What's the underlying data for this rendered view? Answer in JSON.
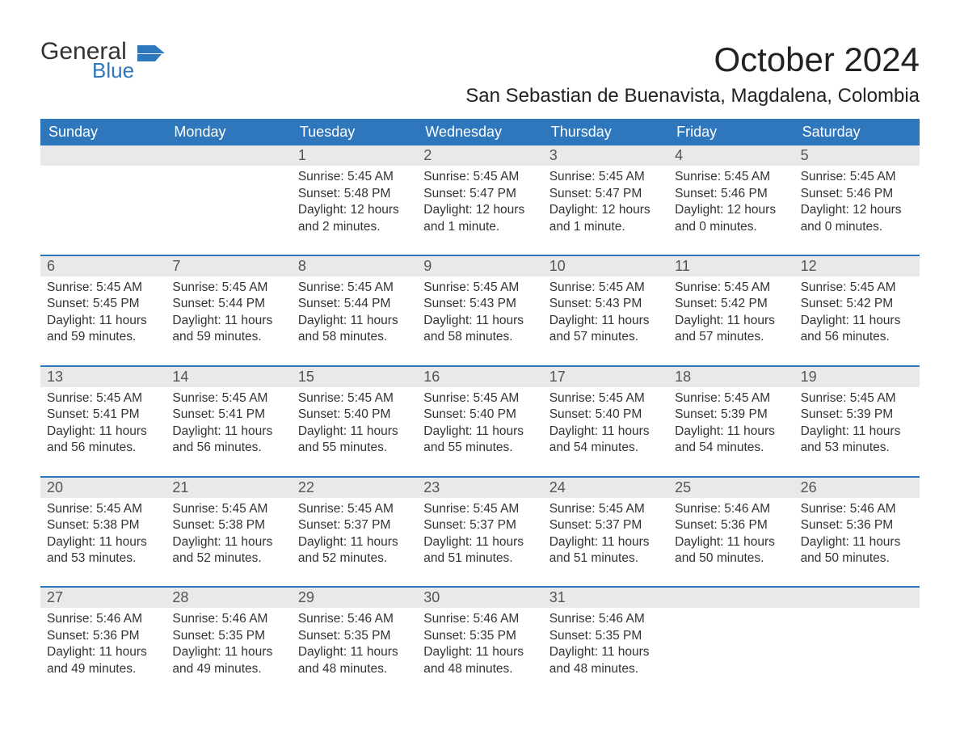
{
  "logo": {
    "general": "General",
    "blue": "Blue",
    "flag_color": "#2f77bc"
  },
  "title": "October 2024",
  "subtitle": "San Sebastian de Buenavista, Magdalena, Colombia",
  "colors": {
    "header_bg": "#2f77bc",
    "header_text": "#ffffff",
    "daynum_bg": "#e9e9e9",
    "text": "#333333",
    "week_border": "#2f77bc"
  },
  "weekdays": [
    "Sunday",
    "Monday",
    "Tuesday",
    "Wednesday",
    "Thursday",
    "Friday",
    "Saturday"
  ],
  "weeks": [
    [
      {
        "n": "",
        "lines": []
      },
      {
        "n": "",
        "lines": []
      },
      {
        "n": "1",
        "lines": [
          "Sunrise: 5:45 AM",
          "Sunset: 5:48 PM",
          "Daylight: 12 hours and 2 minutes."
        ]
      },
      {
        "n": "2",
        "lines": [
          "Sunrise: 5:45 AM",
          "Sunset: 5:47 PM",
          "Daylight: 12 hours and 1 minute."
        ]
      },
      {
        "n": "3",
        "lines": [
          "Sunrise: 5:45 AM",
          "Sunset: 5:47 PM",
          "Daylight: 12 hours and 1 minute."
        ]
      },
      {
        "n": "4",
        "lines": [
          "Sunrise: 5:45 AM",
          "Sunset: 5:46 PM",
          "Daylight: 12 hours and 0 minutes."
        ]
      },
      {
        "n": "5",
        "lines": [
          "Sunrise: 5:45 AM",
          "Sunset: 5:46 PM",
          "Daylight: 12 hours and 0 minutes."
        ]
      }
    ],
    [
      {
        "n": "6",
        "lines": [
          "Sunrise: 5:45 AM",
          "Sunset: 5:45 PM",
          "Daylight: 11 hours and 59 minutes."
        ]
      },
      {
        "n": "7",
        "lines": [
          "Sunrise: 5:45 AM",
          "Sunset: 5:44 PM",
          "Daylight: 11 hours and 59 minutes."
        ]
      },
      {
        "n": "8",
        "lines": [
          "Sunrise: 5:45 AM",
          "Sunset: 5:44 PM",
          "Daylight: 11 hours and 58 minutes."
        ]
      },
      {
        "n": "9",
        "lines": [
          "Sunrise: 5:45 AM",
          "Sunset: 5:43 PM",
          "Daylight: 11 hours and 58 minutes."
        ]
      },
      {
        "n": "10",
        "lines": [
          "Sunrise: 5:45 AM",
          "Sunset: 5:43 PM",
          "Daylight: 11 hours and 57 minutes."
        ]
      },
      {
        "n": "11",
        "lines": [
          "Sunrise: 5:45 AM",
          "Sunset: 5:42 PM",
          "Daylight: 11 hours and 57 minutes."
        ]
      },
      {
        "n": "12",
        "lines": [
          "Sunrise: 5:45 AM",
          "Sunset: 5:42 PM",
          "Daylight: 11 hours and 56 minutes."
        ]
      }
    ],
    [
      {
        "n": "13",
        "lines": [
          "Sunrise: 5:45 AM",
          "Sunset: 5:41 PM",
          "Daylight: 11 hours and 56 minutes."
        ]
      },
      {
        "n": "14",
        "lines": [
          "Sunrise: 5:45 AM",
          "Sunset: 5:41 PM",
          "Daylight: 11 hours and 56 minutes."
        ]
      },
      {
        "n": "15",
        "lines": [
          "Sunrise: 5:45 AM",
          "Sunset: 5:40 PM",
          "Daylight: 11 hours and 55 minutes."
        ]
      },
      {
        "n": "16",
        "lines": [
          "Sunrise: 5:45 AM",
          "Sunset: 5:40 PM",
          "Daylight: 11 hours and 55 minutes."
        ]
      },
      {
        "n": "17",
        "lines": [
          "Sunrise: 5:45 AM",
          "Sunset: 5:40 PM",
          "Daylight: 11 hours and 54 minutes."
        ]
      },
      {
        "n": "18",
        "lines": [
          "Sunrise: 5:45 AM",
          "Sunset: 5:39 PM",
          "Daylight: 11 hours and 54 minutes."
        ]
      },
      {
        "n": "19",
        "lines": [
          "Sunrise: 5:45 AM",
          "Sunset: 5:39 PM",
          "Daylight: 11 hours and 53 minutes."
        ]
      }
    ],
    [
      {
        "n": "20",
        "lines": [
          "Sunrise: 5:45 AM",
          "Sunset: 5:38 PM",
          "Daylight: 11 hours and 53 minutes."
        ]
      },
      {
        "n": "21",
        "lines": [
          "Sunrise: 5:45 AM",
          "Sunset: 5:38 PM",
          "Daylight: 11 hours and 52 minutes."
        ]
      },
      {
        "n": "22",
        "lines": [
          "Sunrise: 5:45 AM",
          "Sunset: 5:37 PM",
          "Daylight: 11 hours and 52 minutes."
        ]
      },
      {
        "n": "23",
        "lines": [
          "Sunrise: 5:45 AM",
          "Sunset: 5:37 PM",
          "Daylight: 11 hours and 51 minutes."
        ]
      },
      {
        "n": "24",
        "lines": [
          "Sunrise: 5:45 AM",
          "Sunset: 5:37 PM",
          "Daylight: 11 hours and 51 minutes."
        ]
      },
      {
        "n": "25",
        "lines": [
          "Sunrise: 5:46 AM",
          "Sunset: 5:36 PM",
          "Daylight: 11 hours and 50 minutes."
        ]
      },
      {
        "n": "26",
        "lines": [
          "Sunrise: 5:46 AM",
          "Sunset: 5:36 PM",
          "Daylight: 11 hours and 50 minutes."
        ]
      }
    ],
    [
      {
        "n": "27",
        "lines": [
          "Sunrise: 5:46 AM",
          "Sunset: 5:36 PM",
          "Daylight: 11 hours and 49 minutes."
        ]
      },
      {
        "n": "28",
        "lines": [
          "Sunrise: 5:46 AM",
          "Sunset: 5:35 PM",
          "Daylight: 11 hours and 49 minutes."
        ]
      },
      {
        "n": "29",
        "lines": [
          "Sunrise: 5:46 AM",
          "Sunset: 5:35 PM",
          "Daylight: 11 hours and 48 minutes."
        ]
      },
      {
        "n": "30",
        "lines": [
          "Sunrise: 5:46 AM",
          "Sunset: 5:35 PM",
          "Daylight: 11 hours and 48 minutes."
        ]
      },
      {
        "n": "31",
        "lines": [
          "Sunrise: 5:46 AM",
          "Sunset: 5:35 PM",
          "Daylight: 11 hours and 48 minutes."
        ]
      },
      {
        "n": "",
        "lines": []
      },
      {
        "n": "",
        "lines": []
      }
    ]
  ]
}
